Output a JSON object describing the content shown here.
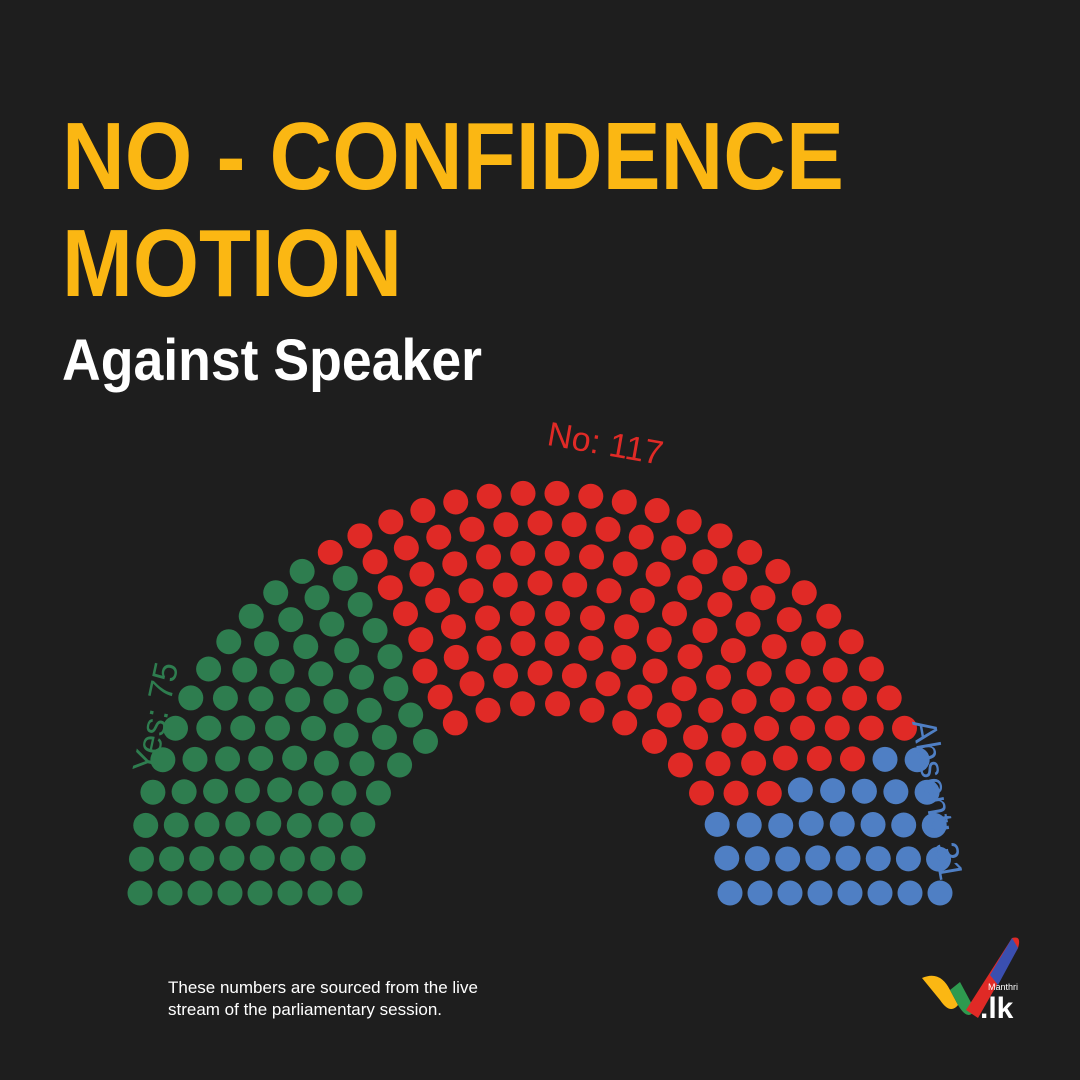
{
  "chart_data": {
    "type": "parliament",
    "title": [
      "NO - CONFIDENCE",
      "MOTION"
    ],
    "subtitle": "Against Speaker",
    "values": [
      75,
      117,
      31
    ],
    "value_labels": [
      "Yes: 75",
      "No: 117",
      "Absent: 31"
    ],
    "colors": [
      "#2e7d4f",
      "#e02a26",
      "#4f7fc4"
    ]
  },
  "footnote": [
    "These numbers are sourced from the live",
    "stream of the parliamentary session."
  ],
  "logo": {
    "small": "Manthri",
    "big": ".lk"
  }
}
